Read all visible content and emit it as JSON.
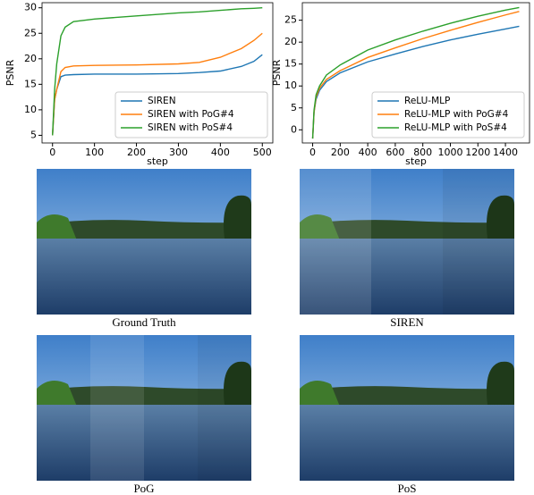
{
  "chart_data": [
    {
      "type": "line",
      "x_label": "step",
      "y_label": "PSNR",
      "x": [
        0,
        5,
        10,
        20,
        30,
        50,
        100,
        200,
        300,
        350,
        400,
        450,
        480,
        500
      ],
      "series": [
        {
          "name": "SIREN",
          "color": "#1f77b4",
          "values": [
            5,
            12,
            14,
            16.5,
            16.8,
            16.9,
            17,
            17,
            17.1,
            17.3,
            17.6,
            18.5,
            19.5,
            20.8
          ]
        },
        {
          "name": "SIREN with PoG#4",
          "color": "#ff7f0e",
          "values": [
            5,
            12,
            14,
            17.5,
            18.3,
            18.6,
            18.7,
            18.8,
            19,
            19.3,
            20.3,
            22,
            23.6,
            25
          ]
        },
        {
          "name": "SIREN with PoS#4",
          "color": "#2ca02c",
          "values": [
            5,
            14,
            19,
            24.5,
            26.2,
            27.3,
            27.8,
            28.4,
            29,
            29.2,
            29.5,
            29.8,
            29.9,
            30
          ]
        }
      ],
      "xlim": [
        -25,
        525
      ],
      "xticks": [
        0,
        100,
        200,
        300,
        400,
        500
      ],
      "ylim": [
        3.5,
        31
      ],
      "yticks": [
        5,
        10,
        15,
        20,
        25,
        30
      ],
      "legend": "lower right"
    },
    {
      "type": "line",
      "x_label": "step",
      "y_label": "PSNR",
      "x": [
        0,
        10,
        25,
        50,
        100,
        200,
        400,
        600,
        800,
        1000,
        1200,
        1400,
        1500
      ],
      "series": [
        {
          "name": "ReLU-MLP",
          "color": "#1f77b4",
          "values": [
            -2,
            4,
            7,
            9,
            11,
            13,
            15.5,
            17.3,
            19,
            20.5,
            21.8,
            23,
            23.6
          ]
        },
        {
          "name": "ReLU-MLP with PoG#4",
          "color": "#ff7f0e",
          "values": [
            -2,
            4,
            7.5,
            9.5,
            11.5,
            13.5,
            16.5,
            18.7,
            20.8,
            22.7,
            24.5,
            26.2,
            27
          ]
        },
        {
          "name": "ReLU-MLP with PoS#4",
          "color": "#2ca02c",
          "values": [
            -2,
            4.5,
            8,
            10,
            12.5,
            14.8,
            18.2,
            20.5,
            22.5,
            24.3,
            25.9,
            27.3,
            27.9
          ]
        }
      ],
      "xlim": [
        -75,
        1575
      ],
      "xticks": [
        0,
        200,
        400,
        600,
        800,
        1000,
        1200,
        1400
      ],
      "ylim": [
        -3,
        29
      ],
      "yticks": [
        0,
        5,
        10,
        15,
        20,
        25
      ],
      "legend": "lower right"
    }
  ],
  "images": [
    {
      "caption": "Ground Truth"
    },
    {
      "caption": "SIREN"
    },
    {
      "caption": "PoG"
    },
    {
      "caption": "PoS"
    }
  ]
}
